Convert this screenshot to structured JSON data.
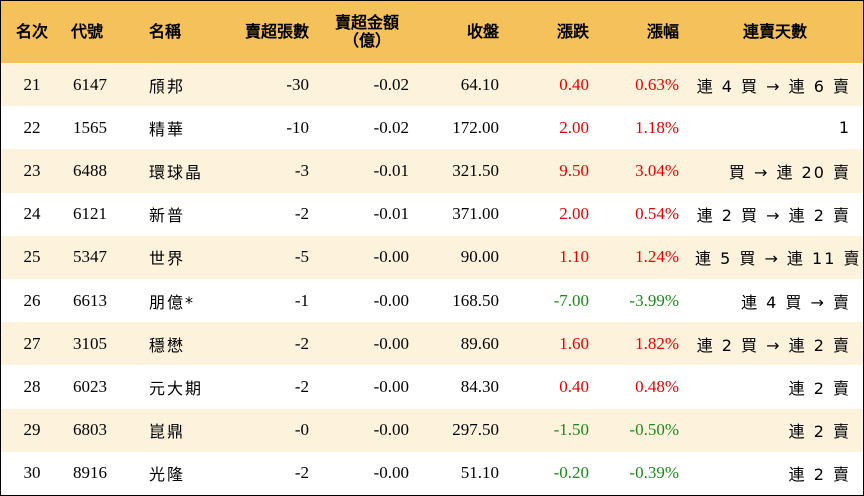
{
  "headers": {
    "rank": "名次",
    "code": "代號",
    "name": "名稱",
    "net_sell_lots": "賣超張數",
    "net_sell_amount_line1": "賣超金額",
    "net_sell_amount_line2": "（億）",
    "close": "收盤",
    "change": "漲跌",
    "change_pct": "漲幅",
    "streak": "連賣天數"
  },
  "colors": {
    "header_bg": "#f5c15a",
    "stripe_bg": "#fdf2dc",
    "up": "#e60000",
    "down": "#1a8a1a"
  },
  "rows": [
    {
      "rank": "21",
      "code": "6147",
      "name": "頎邦",
      "lots": "-30",
      "amount": "-0.02",
      "close": "64.10",
      "change": "0.40",
      "pct": "0.63%",
      "streak": "連 4 買 → 連 6 賣",
      "dir": "up"
    },
    {
      "rank": "22",
      "code": "1565",
      "name": "精華",
      "lots": "-10",
      "amount": "-0.02",
      "close": "172.00",
      "change": "2.00",
      "pct": "1.18%",
      "streak": "1",
      "dir": "up"
    },
    {
      "rank": "23",
      "code": "6488",
      "name": "環球晶",
      "lots": "-3",
      "amount": "-0.01",
      "close": "321.50",
      "change": "9.50",
      "pct": "3.04%",
      "streak": "買 → 連 20 賣",
      "dir": "up"
    },
    {
      "rank": "24",
      "code": "6121",
      "name": "新普",
      "lots": "-2",
      "amount": "-0.01",
      "close": "371.00",
      "change": "2.00",
      "pct": "0.54%",
      "streak": "連 2 買 → 連 2 賣",
      "dir": "up"
    },
    {
      "rank": "25",
      "code": "5347",
      "name": "世界",
      "lots": "-5",
      "amount": "-0.00",
      "close": "90.00",
      "change": "1.10",
      "pct": "1.24%",
      "streak": "連 5 買 → 連 11 賣",
      "dir": "up"
    },
    {
      "rank": "26",
      "code": "6613",
      "name": "朋億*",
      "lots": "-1",
      "amount": "-0.00",
      "close": "168.50",
      "change": "-7.00",
      "pct": "-3.99%",
      "streak": "連 4 買 → 賣",
      "dir": "down"
    },
    {
      "rank": "27",
      "code": "3105",
      "name": "穩懋",
      "lots": "-2",
      "amount": "-0.00",
      "close": "89.60",
      "change": "1.60",
      "pct": "1.82%",
      "streak": "連 2 買 → 連 2 賣",
      "dir": "up"
    },
    {
      "rank": "28",
      "code": "6023",
      "name": "元大期",
      "lots": "-2",
      "amount": "-0.00",
      "close": "84.30",
      "change": "0.40",
      "pct": "0.48%",
      "streak": "連 2 賣",
      "dir": "up"
    },
    {
      "rank": "29",
      "code": "6803",
      "name": "崑鼎",
      "lots": "-0",
      "amount": "-0.00",
      "close": "297.50",
      "change": "-1.50",
      "pct": "-0.50%",
      "streak": "連 2 賣",
      "dir": "down"
    },
    {
      "rank": "30",
      "code": "8916",
      "name": "光隆",
      "lots": "-2",
      "amount": "-0.00",
      "close": "51.10",
      "change": "-0.20",
      "pct": "-0.39%",
      "streak": "連 2 賣",
      "dir": "down"
    }
  ]
}
